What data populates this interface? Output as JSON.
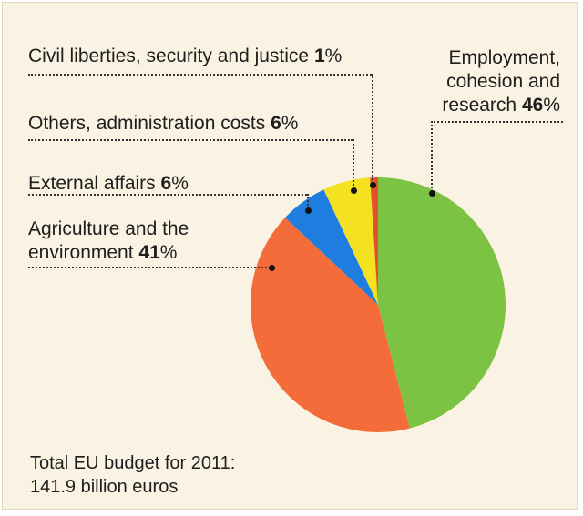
{
  "chart_data": {
    "type": "pie",
    "categories": [
      "Employment, cohesion and research",
      "Agriculture and the environment",
      "External affairs",
      "Others, administration costs",
      "Civil liberties, security and justice"
    ],
    "values": [
      46,
      41,
      6,
      6,
      1
    ],
    "unit": "%",
    "colors": [
      "#7cc243",
      "#f36c3a",
      "#1f7de0",
      "#f4e11f",
      "#e2522c"
    ],
    "labels": {
      "civil": {
        "text": "Civil liberties, security and justice",
        "value": "1",
        "unit": "%"
      },
      "others": {
        "text": "Others, administration costs",
        "value": "6",
        "unit": "%"
      },
      "external": {
        "text": "External affairs",
        "value": "6",
        "unit": "%"
      },
      "agri_line1": "Agriculture and the",
      "agri_line2": "environment",
      "agri_value": "41",
      "agri_unit": "%",
      "emp_line1": "Employment,",
      "emp_line2": "cohesion and",
      "emp_line3": "research",
      "emp_value": "46",
      "emp_unit": "%"
    },
    "footnote_line1": "Total EU budget for 2011:",
    "footnote_line2": "141.9 billion euros"
  }
}
